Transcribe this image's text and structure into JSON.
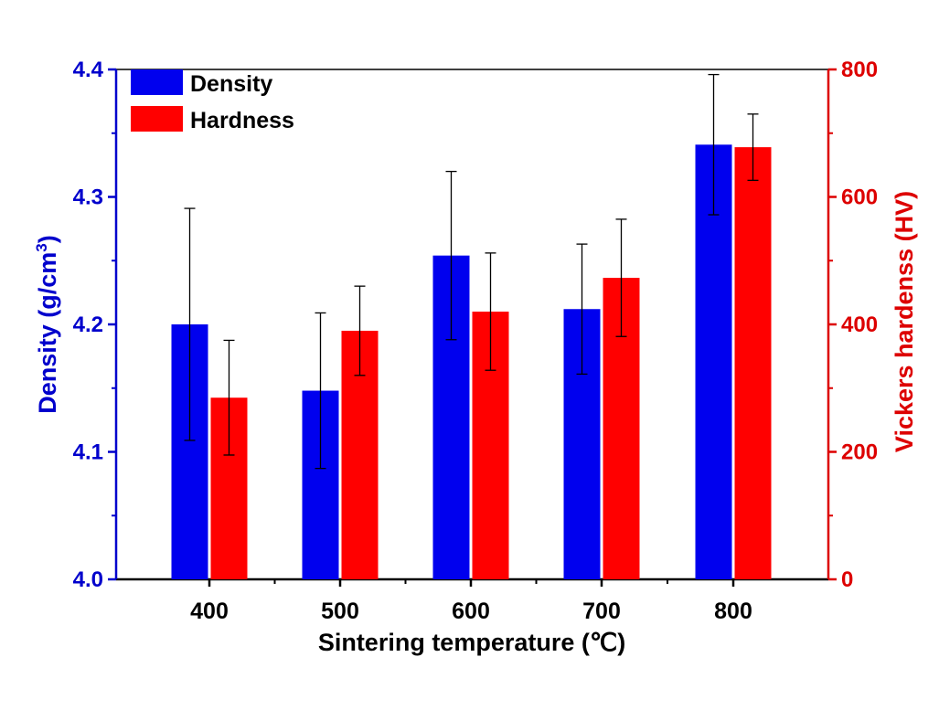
{
  "chart_data": {
    "type": "bar",
    "categories": [
      "400",
      "500",
      "600",
      "700",
      "800"
    ],
    "series": [
      {
        "name": "Density",
        "axis": "left",
        "color": "#0000ee",
        "values": [
          4.2,
          4.148,
          4.254,
          4.212,
          4.341
        ],
        "errors": [
          0.091,
          0.061,
          0.066,
          0.051,
          0.055
        ]
      },
      {
        "name": "Hardness",
        "axis": "right",
        "color": "#ff0000",
        "values": [
          285,
          390,
          420,
          473,
          678
        ],
        "errors": [
          90,
          70,
          92,
          92,
          52
        ]
      }
    ],
    "xlabel": "Sintering temperature (℃)",
    "ylabel_left": "Density (g/cm",
    "ylabel_left_sup": "3",
    "ylabel_left_end": ")",
    "ylabel_right": "Vickers hardenss (HV)",
    "ylim_left": [
      4.0,
      4.4
    ],
    "ylim_right": [
      0,
      800
    ],
    "yticks_left": [
      "4.0",
      "4.1",
      "4.2",
      "4.3",
      "4.4"
    ],
    "yticks_right": [
      "0",
      "200",
      "400",
      "600",
      "800"
    ],
    "legend": [
      "Density",
      "Hardness"
    ],
    "legend_position": "top-left",
    "left_axis_color": "#0000cc",
    "right_axis_color": "#dd0000"
  }
}
